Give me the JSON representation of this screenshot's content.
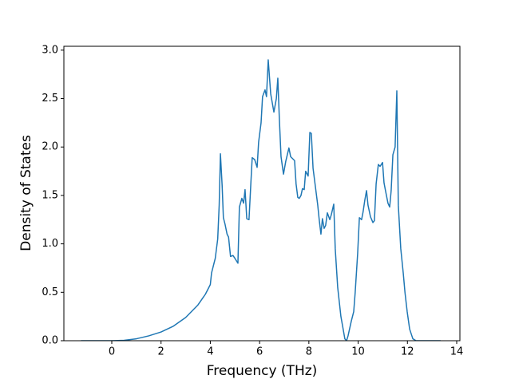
{
  "chart_data": {
    "type": "line",
    "xlabel": "Frequency (THz)",
    "ylabel": "Density of States",
    "x": [
      -1.25,
      0,
      0.5,
      1,
      1.5,
      2,
      2.5,
      3,
      3.5,
      3.8,
      4,
      4.05,
      4.2,
      4.3,
      4.36,
      4.41,
      4.48,
      4.53,
      4.6,
      4.68,
      4.74,
      4.82,
      4.92,
      5.0,
      5.12,
      5.18,
      5.28,
      5.35,
      5.41,
      5.48,
      5.57,
      5.64,
      5.7,
      5.8,
      5.9,
      5.96,
      6.06,
      6.12,
      6.22,
      6.28,
      6.35,
      6.45,
      6.58,
      6.68,
      6.74,
      6.8,
      6.87,
      6.97,
      7.06,
      7.19,
      7.26,
      7.42,
      7.48,
      7.55,
      7.61,
      7.68,
      7.74,
      7.81,
      7.87,
      7.97,
      8.04,
      8.1,
      8.17,
      8.26,
      8.36,
      8.42,
      8.49,
      8.55,
      8.62,
      8.68,
      8.75,
      8.85,
      8.91,
      9.01,
      9.07,
      9.17,
      9.3,
      9.37,
      9.46,
      9.53,
      9.59,
      9.72,
      9.82,
      9.88,
      9.98,
      10.05,
      10.14,
      10.2,
      10.27,
      10.34,
      10.4,
      10.5,
      10.6,
      10.66,
      10.73,
      10.82,
      10.89,
      10.99,
      11.05,
      11.11,
      11.21,
      11.28,
      11.34,
      11.41,
      11.5,
      11.57,
      11.63,
      11.73,
      11.83,
      11.9,
      11.99,
      12.09,
      12.22,
      12.35,
      13.35
    ],
    "values": [
      0,
      0,
      0.004,
      0.02,
      0.05,
      0.09,
      0.15,
      0.24,
      0.37,
      0.48,
      0.58,
      0.7,
      0.85,
      1.05,
      1.4,
      1.93,
      1.6,
      1.27,
      1.2,
      1.1,
      1.07,
      0.87,
      0.88,
      0.85,
      0.8,
      1.38,
      1.47,
      1.42,
      1.56,
      1.26,
      1.25,
      1.6,
      1.89,
      1.87,
      1.79,
      2.05,
      2.25,
      2.52,
      2.59,
      2.52,
      2.9,
      2.55,
      2.36,
      2.5,
      2.71,
      2.3,
      1.9,
      1.72,
      1.85,
      1.99,
      1.9,
      1.86,
      1.62,
      1.48,
      1.47,
      1.5,
      1.57,
      1.56,
      1.75,
      1.7,
      2.15,
      2.14,
      1.78,
      1.6,
      1.4,
      1.25,
      1.1,
      1.26,
      1.16,
      1.19,
      1.32,
      1.25,
      1.3,
      1.41,
      0.95,
      0.55,
      0.25,
      0.15,
      0.02,
      0,
      0.05,
      0.2,
      0.3,
      0.5,
      0.9,
      1.27,
      1.25,
      1.33,
      1.45,
      1.55,
      1.4,
      1.28,
      1.22,
      1.24,
      1.62,
      1.82,
      1.8,
      1.84,
      1.63,
      1.55,
      1.42,
      1.38,
      1.55,
      1.92,
      2.0,
      2.58,
      1.4,
      0.95,
      0.7,
      0.5,
      0.3,
      0.12,
      0.02,
      0,
      0
    ],
    "color": "#1f77b4",
    "xlim": [
      -1.944,
      14.13
    ],
    "xticks": [
      0,
      2,
      4,
      6,
      8,
      10,
      12,
      14
    ],
    "ylim": [
      0,
      3.04
    ],
    "yticks": [
      {
        "value": 0,
        "label": "0.0"
      },
      {
        "value": 0.5,
        "label": "0.5"
      },
      {
        "value": 1,
        "label": "1.0"
      },
      {
        "value": 1.5,
        "label": "1.5"
      },
      {
        "value": 2,
        "label": "2.0"
      },
      {
        "value": 2.5,
        "label": "2.5"
      },
      {
        "value": 3,
        "label": "3.0"
      }
    ]
  }
}
